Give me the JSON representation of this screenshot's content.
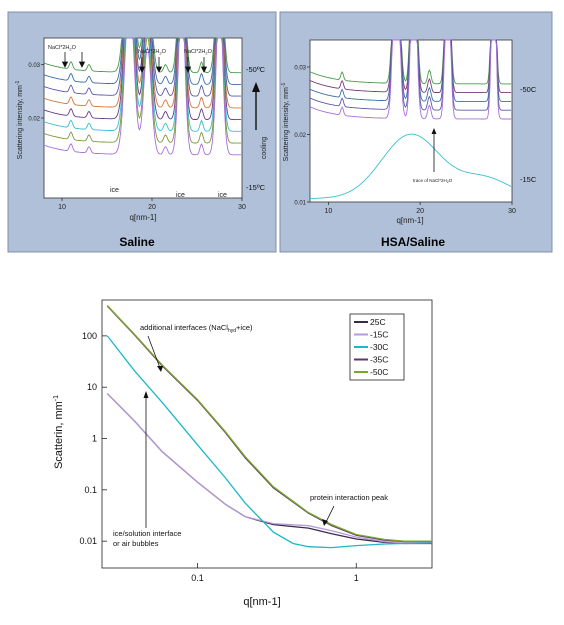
{
  "chart_data": [
    {
      "type": "line",
      "panel_label": "Saline",
      "ylabel": "Scattering intensity, mm",
      "ylabel_sup": "-1",
      "xlabel": "q[nm-1]",
      "xlim": [
        8,
        30
      ],
      "ylim": [
        0.005,
        0.035
      ],
      "xticks": [
        "10",
        "20",
        "30"
      ],
      "yticks": [
        "0.02",
        "0.03"
      ],
      "series_colors": [
        "#4a9a4a",
        "#3a6fa8",
        "#5a5aa8",
        "#d07a3a",
        "#6a3a8a",
        "#3ac0d0",
        "#7a9a3a",
        "#a870d8"
      ],
      "annotations": {
        "peak1": "NaCl*2H",
        "peak1_sub": "2",
        "peak1_tail": "O",
        "peak2": "NaCl*2H",
        "peak2_sub": "2",
        "peak2_tail": "O",
        "peak3": "NaCl*2H",
        "peak3_sub": "2",
        "peak3_tail": "O",
        "ice1": "ice",
        "ice2": "ice",
        "ice3": "ice",
        "temp_top": "-50ºC",
        "temp_bottom": "-15ºC",
        "cooling": "cooling"
      }
    },
    {
      "type": "line",
      "panel_label": "HSA/Saline",
      "ylabel": "Scattering intensity, mm",
      "ylabel_sup": "-1",
      "xlabel": "q[nm-1]",
      "xlim": [
        8,
        30
      ],
      "ylim": [
        0.01,
        0.034
      ],
      "xticks": [
        "10",
        "20",
        "30"
      ],
      "yticks": [
        "0.01",
        "0.02",
        "0.03"
      ],
      "series_colors": [
        "#4a9a4a",
        "#7a3a7a",
        "#3a6fa8",
        "#5a5aa8",
        "#a870d8",
        "#3ac0d0"
      ],
      "annotations": {
        "trace": "trace of NaCl*2H",
        "trace_sub": "2",
        "trace_tail": "O",
        "temp_top": "-50C",
        "temp_bottom": "-15C"
      }
    },
    {
      "type": "line",
      "xscale": "log",
      "yscale": "log",
      "xlabel": "q[nm-1]",
      "ylabel": "Scatterin, mm",
      "ylabel_sup": "-1",
      "xlim": [
        0.025,
        3
      ],
      "ylim": [
        0.003,
        500
      ],
      "xticks": [
        "0.1",
        "1"
      ],
      "yticks": [
        "0.01",
        "0.1",
        "1",
        "10",
        "100"
      ],
      "legend_position": "top-right",
      "series": [
        {
          "name": "25C",
          "color": "#3a2a4a",
          "x": [
            0.027,
            0.04,
            0.06,
            0.1,
            0.15,
            0.2,
            0.3,
            0.5,
            0.7,
            1,
            1.5,
            2,
            3
          ],
          "y": [
            7.5,
            2.2,
            0.55,
            0.14,
            0.052,
            0.03,
            0.021,
            0.018,
            0.014,
            0.011,
            0.0095,
            0.009,
            0.009
          ]
        },
        {
          "name": "-15C",
          "color": "#b89ad8",
          "x": [
            0.027,
            0.04,
            0.06,
            0.1,
            0.15,
            0.2,
            0.3,
            0.5,
            0.7,
            1,
            1.5,
            2,
            3
          ],
          "y": [
            7.5,
            2.2,
            0.55,
            0.14,
            0.052,
            0.03,
            0.022,
            0.02,
            0.016,
            0.012,
            0.0098,
            0.0092,
            0.0092
          ]
        },
        {
          "name": "-30C",
          "color": "#1ab8c8",
          "x": [
            0.027,
            0.04,
            0.06,
            0.1,
            0.15,
            0.2,
            0.3,
            0.4,
            0.5,
            0.7,
            1,
            1.5,
            2,
            3
          ],
          "y": [
            100,
            21,
            5,
            0.75,
            0.17,
            0.055,
            0.015,
            0.009,
            0.0078,
            0.0075,
            0.0082,
            0.0088,
            0.009,
            0.0092
          ]
        },
        {
          "name": "-35C",
          "color": "#5a3a6a",
          "x": [
            0.027,
            0.04,
            0.06,
            0.1,
            0.15,
            0.2,
            0.3,
            0.5,
            0.7,
            1,
            1.5,
            2,
            3
          ],
          "y": [
            380,
            105,
            26,
            5.5,
            1.3,
            0.42,
            0.11,
            0.035,
            0.02,
            0.013,
            0.0105,
            0.0098,
            0.0098
          ]
        },
        {
          "name": "-50C",
          "color": "#7aa82a",
          "x": [
            0.027,
            0.04,
            0.06,
            0.1,
            0.15,
            0.2,
            0.3,
            0.5,
            0.7,
            1,
            1.5,
            2,
            3
          ],
          "y": [
            390,
            108,
            27,
            5.7,
            1.35,
            0.44,
            0.115,
            0.036,
            0.021,
            0.0135,
            0.0108,
            0.01,
            0.01
          ]
        }
      ],
      "annotations": {
        "interfaces": "additional interfaces (NaCl",
        "interfaces_sub": "hyd",
        "interfaces_tail": "+ice)",
        "protein": "protein interaction peak",
        "ice_line1": "ice/solution interface",
        "ice_line2": "or air bubbles"
      }
    }
  ]
}
